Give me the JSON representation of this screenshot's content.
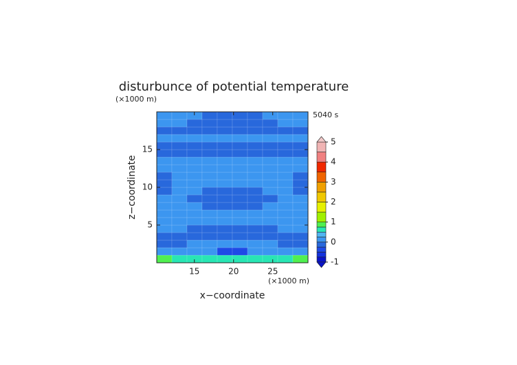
{
  "chart_data": {
    "type": "contour",
    "title": "disturbunce of potential temperature",
    "time_label": "5040 s",
    "x_label": "x−coordinate",
    "y_label": "z−coordinate",
    "x_unit_label": "(×1000 m)",
    "y_unit_label": "(×1000 m)",
    "xlim": [
      10.2,
      29.5
    ],
    "xticks": [
      15,
      20,
      25
    ],
    "ylim": [
      0,
      20
    ],
    "yticks": [
      5,
      10,
      15
    ],
    "z": [
      [
        0.8,
        0.6,
        0.6,
        0.5,
        0.5,
        0.5,
        0.5,
        0.6,
        0.6,
        0.8
      ],
      [
        0.1,
        0.1,
        0.1,
        0.1,
        -0.3,
        -0.3,
        0.1,
        0.1,
        0.1,
        0.1
      ],
      [
        -0.1,
        -0.1,
        0.1,
        0.1,
        0.1,
        0.1,
        0.1,
        0.1,
        -0.1,
        -0.1
      ],
      [
        -0.1,
        -0.1,
        -0.1,
        -0.1,
        -0.1,
        -0.1,
        -0.1,
        -0.1,
        -0.1,
        -0.1
      ],
      [
        0.1,
        0.1,
        -0.1,
        -0.1,
        -0.1,
        -0.1,
        -0.1,
        -0.1,
        0.1,
        0.1
      ],
      [
        0.1,
        0.1,
        0.1,
        0.1,
        0.1,
        0.1,
        0.1,
        0.1,
        0.1,
        0.1
      ],
      [
        0.1,
        0.1,
        0.1,
        0.1,
        0.1,
        0.1,
        0.1,
        0.1,
        0.1,
        0.1
      ],
      [
        0.1,
        0.1,
        0.1,
        -0.1,
        -0.1,
        -0.1,
        -0.1,
        0.1,
        0.1,
        0.1
      ],
      [
        0.1,
        0.1,
        -0.1,
        -0.1,
        -0.1,
        -0.1,
        -0.1,
        -0.1,
        0.1,
        0.1
      ],
      [
        -0.1,
        0.1,
        0.1,
        -0.1,
        -0.1,
        -0.1,
        -0.1,
        0.1,
        0.1,
        -0.1
      ],
      [
        -0.1,
        0.1,
        0.1,
        0.1,
        0.1,
        0.1,
        0.1,
        0.1,
        0.1,
        -0.1
      ],
      [
        -0.1,
        0.1,
        0.1,
        0.1,
        0.1,
        0.1,
        0.1,
        0.1,
        0.1,
        -0.1
      ],
      [
        0.1,
        0.1,
        0.1,
        0.1,
        0.1,
        0.1,
        0.1,
        0.1,
        0.1,
        0.1
      ],
      [
        0.1,
        0.1,
        0.1,
        0.1,
        0.1,
        0.1,
        0.1,
        0.1,
        0.1,
        0.1
      ],
      [
        -0.1,
        -0.1,
        -0.1,
        -0.1,
        -0.1,
        -0.1,
        -0.1,
        -0.1,
        -0.1,
        -0.1
      ],
      [
        -0.1,
        -0.1,
        -0.1,
        -0.1,
        -0.1,
        -0.1,
        -0.1,
        -0.1,
        -0.1,
        -0.1
      ],
      [
        0.1,
        0.1,
        0.1,
        0.1,
        0.1,
        0.1,
        0.1,
        0.1,
        0.1,
        0.1
      ],
      [
        -0.1,
        -0.1,
        -0.1,
        -0.1,
        -0.1,
        -0.1,
        -0.1,
        -0.1,
        -0.1,
        -0.1
      ],
      [
        0.1,
        0.1,
        -0.1,
        -0.1,
        -0.1,
        -0.1,
        -0.1,
        -0.1,
        0.1,
        0.1
      ],
      [
        0.1,
        0.1,
        0.1,
        -0.1,
        -0.1,
        -0.1,
        -0.1,
        0.1,
        0.1,
        0.1
      ]
    ],
    "levels": [
      -1,
      -0.75,
      -0.5,
      -0.25,
      0,
      0.25,
      0.5,
      0.75,
      1,
      1.5,
      2,
      2.5,
      3,
      3.5,
      4,
      4.5,
      5
    ],
    "colors": [
      "#0a14c8",
      "#1432dc",
      "#1e4ae6",
      "#2868dc",
      "#3c96f0",
      "#50b4f0",
      "#28e6b4",
      "#50f050",
      "#a0f000",
      "#e6f000",
      "#f0c800",
      "#f0a000",
      "#f06400",
      "#f02800",
      "#f08080",
      "#f0b4b4"
    ],
    "under_color": "#0a14c8",
    "over_color": "#f0c8c8",
    "colorbar_ticks": [
      -1,
      0,
      1,
      2,
      3,
      4,
      5
    ]
  }
}
